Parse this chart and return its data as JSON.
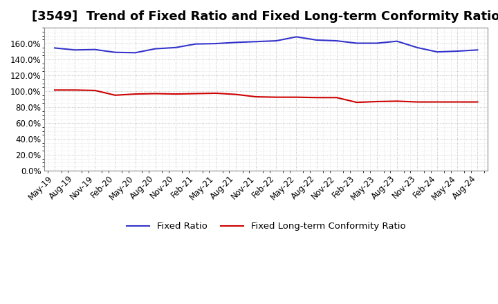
{
  "title": "[3549]  Trend of Fixed Ratio and Fixed Long-term Conformity Ratio",
  "x_labels": [
    "May-19",
    "Aug-19",
    "Nov-19",
    "Feb-20",
    "May-20",
    "Aug-20",
    "Nov-20",
    "Feb-21",
    "May-21",
    "Aug-21",
    "Nov-21",
    "Feb-22",
    "May-22",
    "Aug-22",
    "Nov-22",
    "Feb-23",
    "May-23",
    "Aug-23",
    "Nov-23",
    "Feb-24",
    "May-24",
    "Aug-24"
  ],
  "fixed_ratio": [
    154.5,
    152.0,
    152.5,
    149.0,
    148.5,
    153.5,
    155.0,
    159.5,
    160.0,
    161.5,
    162.5,
    163.5,
    168.5,
    164.5,
    163.5,
    160.5,
    160.5,
    163.0,
    155.0,
    149.5,
    150.5,
    152.0
  ],
  "fixed_lt_ratio": [
    101.5,
    101.5,
    101.0,
    95.0,
    96.5,
    97.0,
    96.5,
    97.0,
    97.5,
    96.0,
    93.0,
    92.5,
    92.5,
    92.0,
    92.0,
    86.0,
    87.0,
    87.5,
    86.5,
    86.5,
    86.5,
    86.5
  ],
  "blue_color": "#3333cc",
  "red_color": "#cc0000",
  "bg_color": "#ffffff",
  "plot_bg_color": "#ffffff",
  "grid_color": "#999999",
  "ylim": [
    0,
    180
  ],
  "yticks": [
    0,
    20,
    40,
    60,
    80,
    100,
    120,
    140,
    160
  ],
  "legend_fixed_ratio": "Fixed Ratio",
  "legend_fixed_lt_ratio": "Fixed Long-term Conformity Ratio",
  "title_fontsize": 13,
  "axis_fontsize": 8.5
}
